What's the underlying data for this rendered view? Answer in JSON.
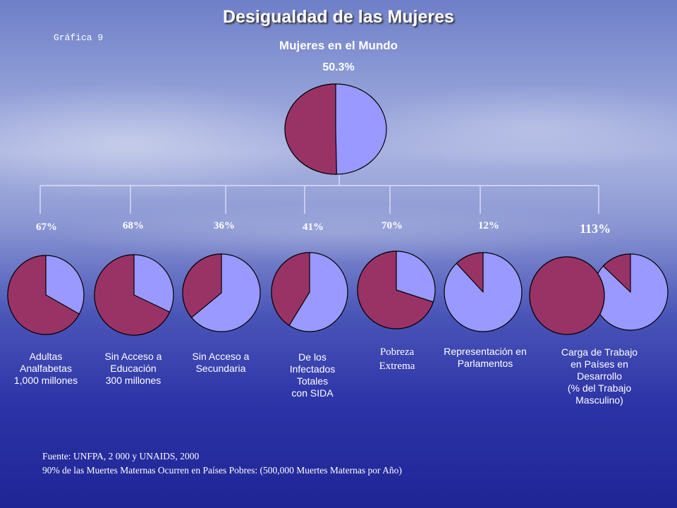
{
  "title": "Desigualdad de las Mujeres",
  "figure_label": "Gráfica 9",
  "footnotes": [
    "Fuente: UNFPA, 2 000 y UNAIDS, 2000",
    "90% de las Muertes Maternas Ocurren en Países Pobres: (500,000 Muertes Maternas por Año)"
  ],
  "colors": {
    "accent": "#993366",
    "remainder": "#9999ff"
  },
  "chart_data": {
    "type": "pie",
    "main": {
      "title": "Mujeres en el Mundo",
      "value_label": "50.3%",
      "value": 50.3
    },
    "pies": [
      {
        "value": 67,
        "value_label": "67%",
        "label_lines": [
          "Adultas",
          "Analfabetas",
          "1,000 millones"
        ]
      },
      {
        "value": 68,
        "value_label": "68%",
        "label_lines": [
          "Sin Acceso a",
          "Educación",
          "300 millones"
        ]
      },
      {
        "value": 36,
        "value_label": "36%",
        "label_lines": [
          "Sin Acceso a",
          "Secundaria"
        ]
      },
      {
        "value": 41,
        "value_label": "41%",
        "label_lines": [
          "De los",
          "Infectados",
          "Totales",
          "con SIDA"
        ]
      },
      {
        "value": 70,
        "value_label": "70%",
        "label_lines": [
          "Pobreza",
          "Extrema"
        ]
      },
      {
        "value": 12,
        "value_label": "12%",
        "label_lines": [
          "Representación en",
          "Parlamentos"
        ]
      },
      {
        "value": 113,
        "value_label": "113%",
        "label_lines": [
          "Carga de Trabajo",
          "en Países en",
          "Desarrollo",
          "(% del Trabajo",
          "Masculino)"
        ]
      }
    ]
  }
}
